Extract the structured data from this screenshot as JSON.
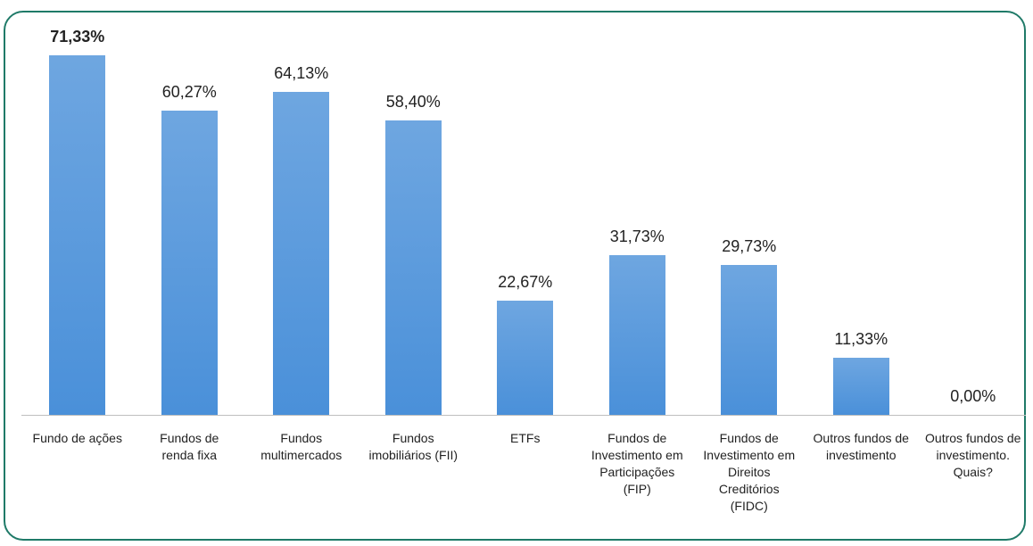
{
  "chart_data": {
    "type": "bar",
    "categories": [
      "Fundo de ações",
      "Fundos de renda fixa",
      "Fundos multimercados",
      "Fundos imobiliários (FII)",
      "ETFs",
      "Fundos de Investimento em Participações (FIP)",
      "Fundos de Investimento em Direitos Creditórios (FIDC)",
      "Outros fundos de investimento",
      "Outros fundos de investimento. Quais?"
    ],
    "values": [
      71.33,
      60.27,
      64.13,
      58.4,
      22.67,
      31.73,
      29.73,
      11.33,
      0
    ],
    "value_labels": [
      "71,33%",
      "60,27%",
      "64,13%",
      "58,40%",
      "22,67%",
      "31,73%",
      "29,73%",
      "11,33%",
      "0,00%"
    ],
    "color": "#4a90d9",
    "highlight_index": 0
  }
}
